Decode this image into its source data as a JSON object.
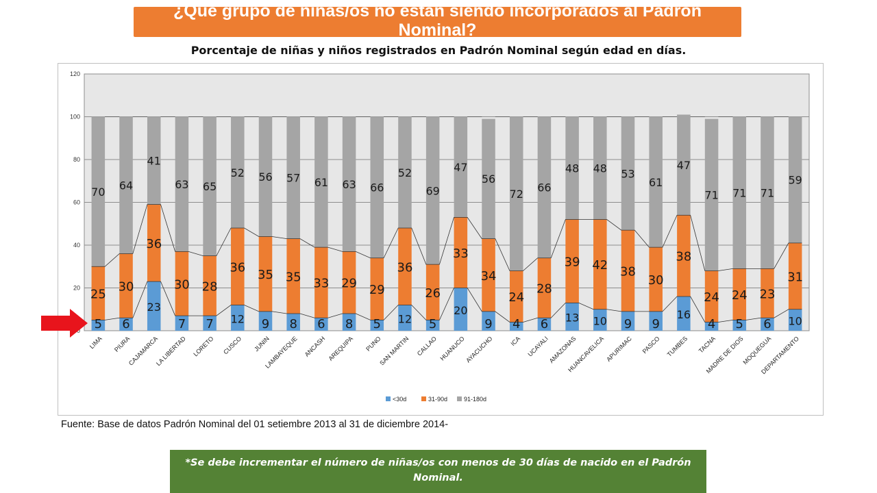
{
  "banner": {
    "title": "¿Qué grupo de niñas/os no están siendo incorporados al Padrón Nominal?"
  },
  "subtitle": "Porcentaje de niñas y niños registrados en Padrón Nominal según  edad en días.",
  "source": "Fuente: Base de datos Padrón Nominal del 01 setiembre 2013 al 31 de diciembre 2014-",
  "note": "*Se debe incrementar el número de niñas/os con menos de 30 días de nacido en el Padrón Nominal.",
  "colors": {
    "lt30": "#5B9BD5",
    "d31_90": "#ED7D31",
    "d91_180": "#A5A5A5",
    "plot_bg": "#E7E7E7",
    "banner": "#ED7D31",
    "note": "#548235",
    "arrow": "#E8141C"
  },
  "chart_data": {
    "type": "bar",
    "stacked": true,
    "title": "Porcentaje de niñas y niños registrados en Padrón Nominal según  edad en días.",
    "xlabel": "",
    "ylabel": "",
    "ylim": [
      0,
      120
    ],
    "yticks": [
      0,
      20,
      40,
      60,
      80,
      100,
      120
    ],
    "grid": true,
    "legend_position": "bottom",
    "categories": [
      "LIMA",
      "PIURA",
      "CAJAMARCA",
      "LA LIBERTAD",
      "LORETO",
      "CUSCO",
      "JUNIN",
      "LAMBAYEQUE",
      "ANCASH",
      "AREQUIPA",
      "PUNO",
      "SAN MARTIN",
      "CALLAO",
      "HUANUCO",
      "AYACUCHO",
      "ICA",
      "UCAYALI",
      "AMAZONAS",
      "HUANCAVELICA",
      "APURIMAC",
      "PASCO",
      "TUMBES",
      "TACNA",
      "MADRE DE DIOS",
      "MOQUEGUA",
      "DEPARTAMENTO"
    ],
    "series": [
      {
        "name": "<30d",
        "values": [
          5,
          6,
          23,
          7,
          7,
          12,
          9,
          8,
          6,
          8,
          5,
          12,
          5,
          20,
          9,
          4,
          6,
          13,
          10,
          9,
          9,
          16,
          4,
          5,
          6,
          10
        ]
      },
      {
        "name": "31-90d",
        "values": [
          25,
          30,
          36,
          30,
          28,
          36,
          35,
          35,
          33,
          29,
          29,
          36,
          26,
          33,
          34,
          24,
          28,
          39,
          42,
          38,
          30,
          38,
          24,
          24,
          23,
          31
        ]
      },
      {
        "name": "91-180d",
        "values": [
          70,
          64,
          41,
          63,
          65,
          52,
          56,
          57,
          61,
          63,
          66,
          52,
          69,
          47,
          56,
          72,
          66,
          48,
          48,
          53,
          61,
          47,
          71,
          71,
          71,
          59
        ]
      }
    ]
  }
}
